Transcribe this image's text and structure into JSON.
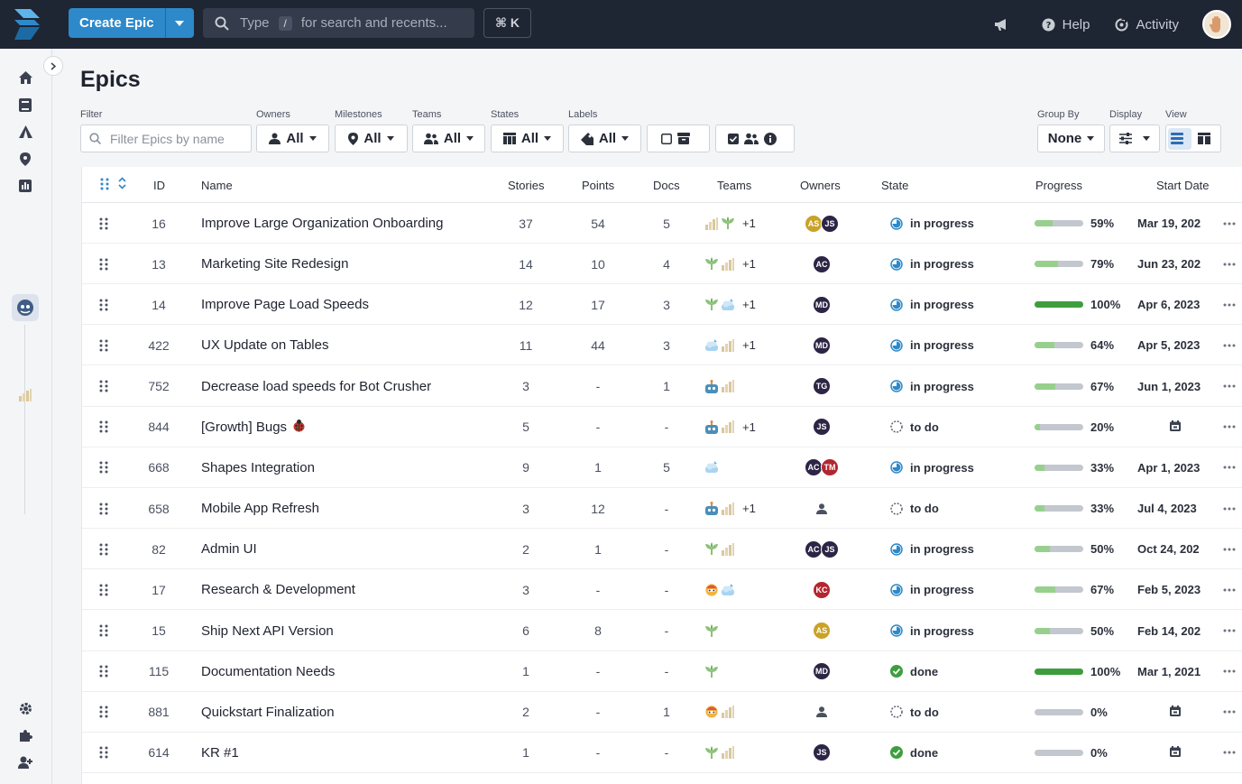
{
  "header": {
    "create_label": "Create Epic",
    "search_type": "Type",
    "search_kbd": "/",
    "search_hint": "for search and recents...",
    "shortcut": "⌘ K",
    "help_label": "Help",
    "activity_label": "Activity"
  },
  "page": {
    "title": "Epics"
  },
  "filters": {
    "filter_label": "Filter",
    "filter_placeholder": "Filter Epics by name",
    "owners_label": "Owners",
    "owners_value": "All",
    "milestones_label": "Milestones",
    "milestones_value": "All",
    "teams_label": "Teams",
    "teams_value": "All",
    "states_label": "States",
    "states_value": "All",
    "labels_label": "Labels",
    "labels_value": "All",
    "group_by_label": "Group By",
    "group_by_value": "None",
    "display_label": "Display",
    "view_label": "View"
  },
  "table": {
    "columns": {
      "id": "ID",
      "name": "Name",
      "stories": "Stories",
      "points": "Points",
      "docs": "Docs",
      "teams": "Teams",
      "owners": "Owners",
      "state": "State",
      "progress": "Progress",
      "start": "Start Date"
    },
    "rows": [
      {
        "id": "16",
        "name": "Improve Large Organization Onboarding",
        "stories": "37",
        "points": "54",
        "docs": "5",
        "teams": [
          "bars",
          "leaf"
        ],
        "teams_more": "+1",
        "owners": [
          {
            "initials": "AS",
            "color": "#c9a227"
          },
          {
            "initials": "JS",
            "color": "#2c2545"
          }
        ],
        "state": "in progress",
        "state_kind": "progress",
        "progress": 59,
        "progress_label": "59%",
        "start": "Mar 19, 202"
      },
      {
        "id": "13",
        "name": "Marketing Site Redesign",
        "stories": "14",
        "points": "10",
        "docs": "4",
        "teams": [
          "leaf",
          "bars"
        ],
        "teams_more": "+1",
        "owners": [
          {
            "initials": "AC",
            "color": "#2c2545"
          }
        ],
        "state": "in progress",
        "state_kind": "progress",
        "progress": 79,
        "progress_label": "79%",
        "start": "Jun 23, 202"
      },
      {
        "id": "14",
        "name": "Improve Page Load Speeds",
        "stories": "12",
        "points": "17",
        "docs": "3",
        "teams": [
          "leaf",
          "cloud"
        ],
        "teams_more": "+1",
        "owners": [
          {
            "initials": "MD",
            "color": "#2c2545"
          }
        ],
        "state": "in progress",
        "state_kind": "progress",
        "progress": 100,
        "progress_label": "100%",
        "start": "Apr 6, 2023"
      },
      {
        "id": "422",
        "name": "UX Update on Tables",
        "stories": "11",
        "points": "44",
        "docs": "3",
        "teams": [
          "cloud",
          "bars"
        ],
        "teams_more": "+1",
        "owners": [
          {
            "initials": "MD",
            "color": "#2c2545"
          }
        ],
        "state": "in progress",
        "state_kind": "progress",
        "progress": 64,
        "progress_label": "64%",
        "start": "Apr 5, 2023"
      },
      {
        "id": "752",
        "name": "Decrease load speeds for Bot Crusher",
        "stories": "3",
        "points": "-",
        "docs": "1",
        "teams": [
          "bot",
          "bars"
        ],
        "teams_more": "",
        "owners": [
          {
            "initials": "TG",
            "color": "#2c2545"
          }
        ],
        "state": "in progress",
        "state_kind": "progress",
        "progress": 67,
        "progress_label": "67%",
        "start": "Jun 1, 2023"
      },
      {
        "id": "844",
        "name": "[Growth] Bugs",
        "stories": "5",
        "points": "-",
        "docs": "-",
        "teams": [
          "bot",
          "bars"
        ],
        "teams_more": "+1",
        "owners": [
          {
            "initials": "JS",
            "color": "#2c2545"
          }
        ],
        "state": "to do",
        "state_kind": "todo",
        "progress": 20,
        "progress_label": "20%",
        "start": "",
        "bug": true
      },
      {
        "id": "668",
        "name": "Shapes Integration",
        "stories": "9",
        "points": "1",
        "docs": "5",
        "teams": [
          "cloud"
        ],
        "teams_more": "",
        "owners": [
          {
            "initials": "AC",
            "color": "#2c2545"
          },
          {
            "initials": "TM",
            "color": "#b3262f"
          }
        ],
        "state": "in progress",
        "state_kind": "progress",
        "progress": 33,
        "progress_label": "33%",
        "start": "Apr 1, 2023"
      },
      {
        "id": "658",
        "name": "Mobile App Refresh",
        "stories": "3",
        "points": "12",
        "docs": "-",
        "teams": [
          "bot",
          "bars"
        ],
        "teams_more": "+1",
        "owners": [],
        "state": "to do",
        "state_kind": "todo",
        "progress": 33,
        "progress_label": "33%",
        "start": "Jul 4, 2023"
      },
      {
        "id": "82",
        "name": "Admin UI",
        "stories": "2",
        "points": "1",
        "docs": "-",
        "teams": [
          "leaf",
          "bars"
        ],
        "teams_more": "",
        "owners": [
          {
            "initials": "AC",
            "color": "#2c2545"
          },
          {
            "initials": "JS",
            "color": "#2c2545"
          }
        ],
        "state": "in progress",
        "state_kind": "progress",
        "progress": 50,
        "progress_label": "50%",
        "start": "Oct 24, 202"
      },
      {
        "id": "17",
        "name": "Research & Development",
        "stories": "3",
        "points": "-",
        "docs": "-",
        "teams": [
          "face",
          "cloud"
        ],
        "teams_more": "",
        "owners": [
          {
            "initials": "KC",
            "color": "#b3262f"
          }
        ],
        "state": "in progress",
        "state_kind": "progress",
        "progress": 67,
        "progress_label": "67%",
        "start": "Feb 5, 2023"
      },
      {
        "id": "15",
        "name": "Ship Next API Version",
        "stories": "6",
        "points": "8",
        "docs": "-",
        "teams": [
          "leaf"
        ],
        "teams_more": "",
        "owners": [
          {
            "initials": "AS",
            "color": "#c9a227"
          }
        ],
        "state": "in progress",
        "state_kind": "progress",
        "progress": 50,
        "progress_label": "50%",
        "start": "Feb 14, 202"
      },
      {
        "id": "115",
        "name": "Documentation Needs",
        "stories": "1",
        "points": "-",
        "docs": "-",
        "teams": [
          "leaf"
        ],
        "teams_more": "",
        "owners": [
          {
            "initials": "MD",
            "color": "#2c2545"
          }
        ],
        "state": "done",
        "state_kind": "done",
        "progress": 100,
        "progress_label": "100%",
        "start": "Mar 1, 2021"
      },
      {
        "id": "881",
        "name": "Quickstart Finalization",
        "stories": "2",
        "points": "-",
        "docs": "1",
        "teams": [
          "face",
          "bars"
        ],
        "teams_more": "",
        "owners": [],
        "state": "to do",
        "state_kind": "todo",
        "progress": 0,
        "progress_label": "0%",
        "start": ""
      },
      {
        "id": "614",
        "name": "KR #1",
        "stories": "1",
        "points": "-",
        "docs": "-",
        "teams": [
          "leaf",
          "bars"
        ],
        "teams_more": "",
        "owners": [
          {
            "initials": "JS",
            "color": "#2c2545"
          }
        ],
        "state": "done",
        "state_kind": "done",
        "progress": 0,
        "progress_label": "0%",
        "start": ""
      }
    ]
  }
}
